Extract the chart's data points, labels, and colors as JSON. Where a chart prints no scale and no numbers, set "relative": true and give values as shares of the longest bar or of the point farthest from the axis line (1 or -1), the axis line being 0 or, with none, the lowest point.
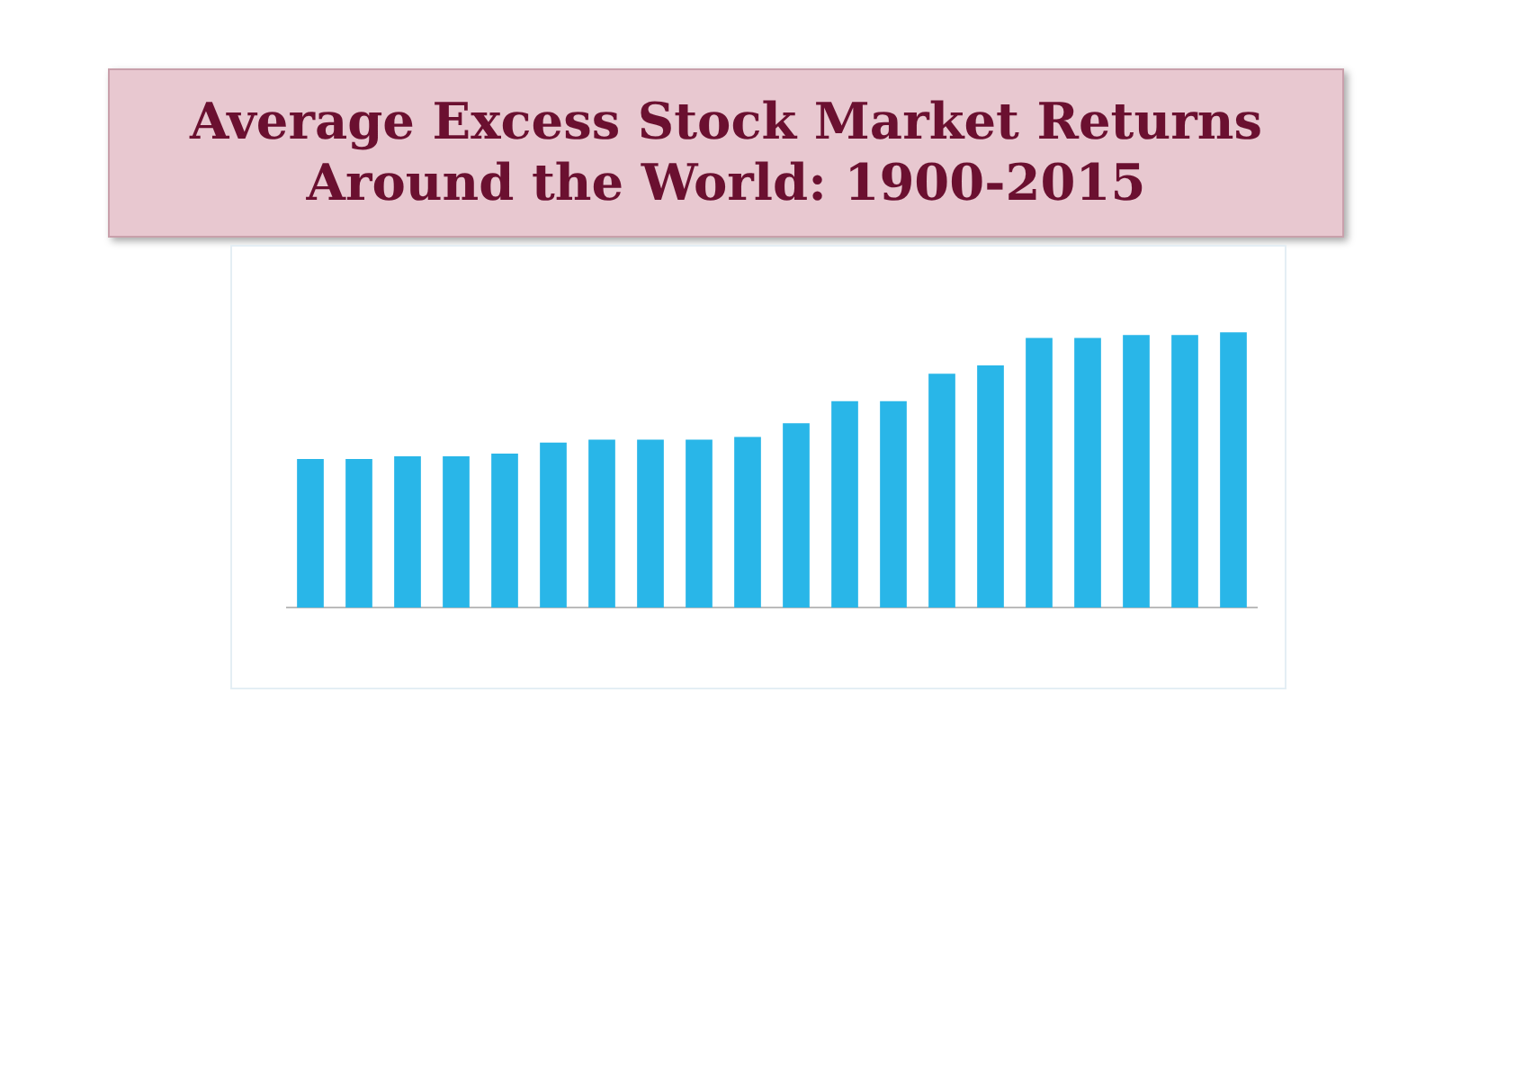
{
  "chart_data": {
    "type": "bar",
    "title": "Average Excess Stock Market Returns Around the World: 1900-2015",
    "categories": [
      null,
      null,
      null,
      null,
      null,
      null,
      null,
      null,
      null,
      null,
      null,
      null,
      null,
      null,
      null,
      null,
      null,
      null,
      null,
      null
    ],
    "values": [
      0.54,
      0.54,
      0.55,
      0.55,
      0.56,
      0.6,
      0.61,
      0.61,
      0.61,
      0.62,
      0.67,
      0.75,
      0.75,
      0.85,
      0.88,
      0.98,
      0.98,
      0.99,
      0.99,
      1
    ],
    "color": "#29b6e8",
    "relative": true
  }
}
